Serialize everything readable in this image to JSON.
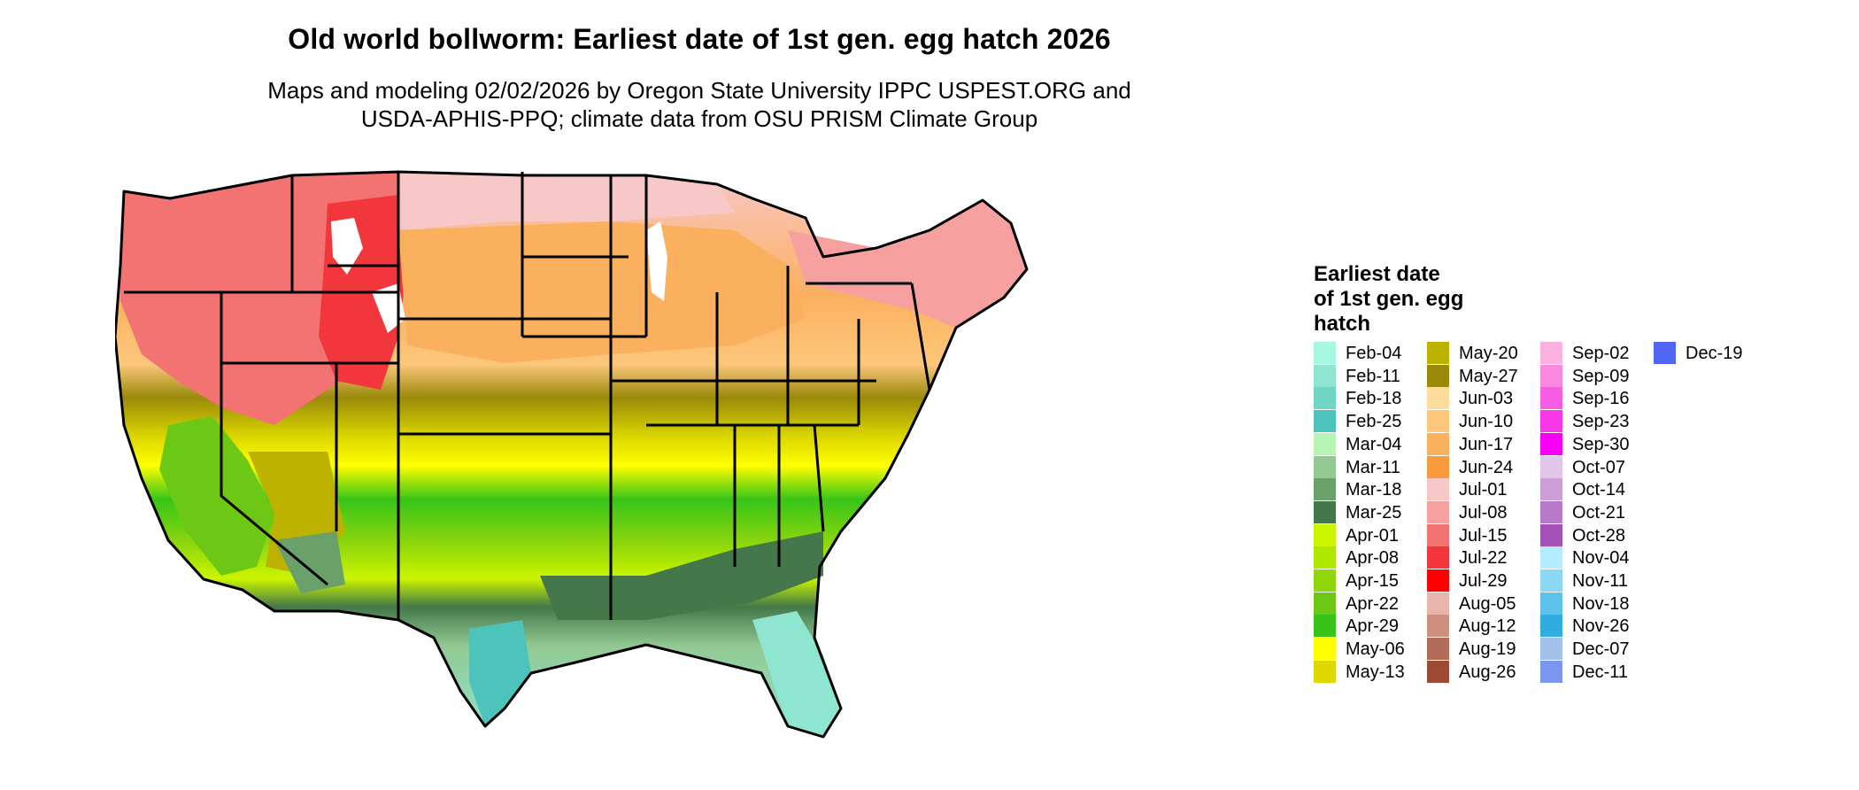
{
  "title": "Old world bollworm: Earliest date of 1st gen. egg hatch 2026",
  "subtitle": {
    "line1": "Maps and modeling 02/02/2026 by Oregon State University IPPC USPEST.ORG and",
    "line2": "USDA-APHIS-PPQ; climate data from OSU PRISM Climate Group"
  },
  "legend": {
    "title_lines": [
      "Earliest date",
      "of 1st gen. egg",
      "hatch"
    ],
    "columns": [
      [
        {
          "label": "Feb-04",
          "color": "#a6f7e0"
        },
        {
          "label": "Feb-11",
          "color": "#8ee6d0"
        },
        {
          "label": "Feb-18",
          "color": "#6fd5c4"
        },
        {
          "label": "Feb-25",
          "color": "#4dc4bb"
        },
        {
          "label": "Mar-04",
          "color": "#b6f5b4"
        },
        {
          "label": "Mar-11",
          "color": "#93c993"
        },
        {
          "label": "Mar-18",
          "color": "#6aa16a"
        },
        {
          "label": "Mar-25",
          "color": "#44784a"
        },
        {
          "label": "Apr-01",
          "color": "#ccf500"
        },
        {
          "label": "Apr-08",
          "color": "#aee800"
        },
        {
          "label": "Apr-15",
          "color": "#8fd70c"
        },
        {
          "label": "Apr-22",
          "color": "#6cc815"
        },
        {
          "label": "Apr-29",
          "color": "#37c418"
        },
        {
          "label": "May-06",
          "color": "#ffff00"
        },
        {
          "label": "May-13",
          "color": "#dcd800"
        }
      ],
      [
        {
          "label": "May-20",
          "color": "#beb200"
        },
        {
          "label": "May-27",
          "color": "#9a8a0a"
        },
        {
          "label": "Jun-03",
          "color": "#fedc9c"
        },
        {
          "label": "Jun-10",
          "color": "#fcc77c"
        },
        {
          "label": "Jun-17",
          "color": "#fbb05e"
        },
        {
          "label": "Jun-24",
          "color": "#f99a3c"
        },
        {
          "label": "Jul-01",
          "color": "#f8c8c8"
        },
        {
          "label": "Jul-08",
          "color": "#f6a0a0"
        },
        {
          "label": "Jul-15",
          "color": "#f37272"
        },
        {
          "label": "Jul-22",
          "color": "#f2373c"
        },
        {
          "label": "Jul-29",
          "color": "#fe0000"
        },
        {
          "label": "Aug-05",
          "color": "#e8b4ab"
        },
        {
          "label": "Aug-12",
          "color": "#cc9080"
        },
        {
          "label": "Aug-19",
          "color": "#b06c58"
        },
        {
          "label": "Aug-26",
          "color": "#9c4a34"
        }
      ],
      [
        {
          "label": "Sep-02",
          "color": "#fcb2e0"
        },
        {
          "label": "Sep-09",
          "color": "#fa88e0"
        },
        {
          "label": "Sep-16",
          "color": "#f85ee4"
        },
        {
          "label": "Sep-23",
          "color": "#f838ea"
        },
        {
          "label": "Sep-30",
          "color": "#f800f6"
        },
        {
          "label": "Oct-07",
          "color": "#e2c6ea"
        },
        {
          "label": "Oct-14",
          "color": "#cc9ed8"
        },
        {
          "label": "Oct-21",
          "color": "#b87ac8"
        },
        {
          "label": "Oct-28",
          "color": "#a452b8"
        },
        {
          "label": "Nov-04",
          "color": "#b4ecff"
        },
        {
          "label": "Nov-11",
          "color": "#8ad8f4"
        },
        {
          "label": "Nov-18",
          "color": "#5cc2ea"
        },
        {
          "label": "Nov-26",
          "color": "#30acdf"
        },
        {
          "label": "Dec-07",
          "color": "#a2c0ea"
        },
        {
          "label": "Dec-11",
          "color": "#7a96ee"
        }
      ],
      [
        {
          "label": "Dec-19",
          "color": "#5266f4"
        }
      ]
    ]
  }
}
